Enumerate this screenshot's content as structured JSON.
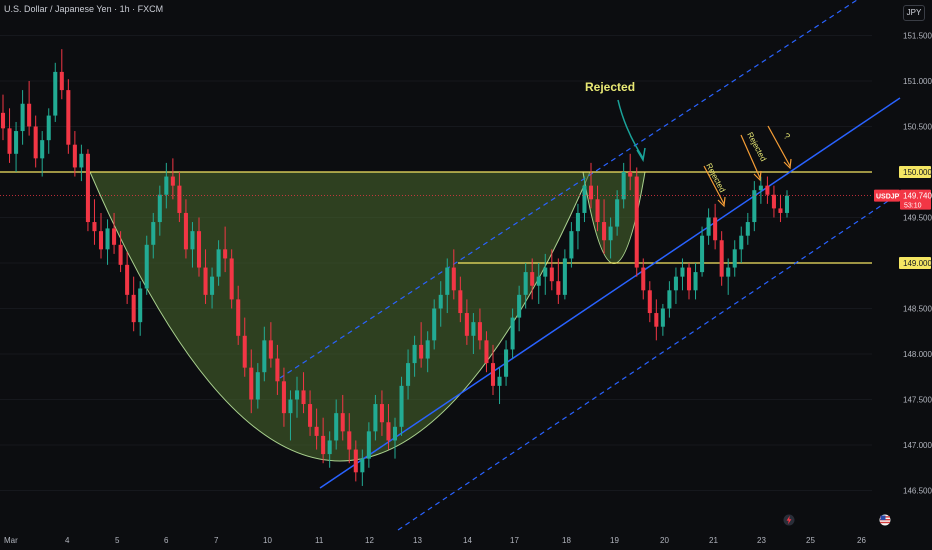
{
  "header": {
    "title": "U.S. Dollar / Japanese Yen · 1h · FXCM",
    "currency": "JPY"
  },
  "colors": {
    "background": "#0c0d10",
    "bull": "#22ab94",
    "bear": "#f23645",
    "horizontal_line": "#f5e663",
    "channel": "#2962ff",
    "cup_fill": "#4b6b2e",
    "cup_stroke": "#a9d08e",
    "annotation_yellow": "#e8e874",
    "annotation_orange": "#f59d36",
    "arrow_teal": "#1aa39a",
    "price_badge": "#f23645"
  },
  "chart_data": {
    "type": "candlestick",
    "title": "U.S. Dollar / Japanese Yen · 1h · FXCM",
    "y_ticks": [
      146.5,
      147.0,
      147.5,
      148.0,
      148.5,
      149.0,
      149.5,
      150.0,
      150.5,
      151.0,
      151.5
    ],
    "y_tick_labels": [
      "146.500",
      "147.000",
      "147.500",
      "148.000",
      "148.500",
      "149.000",
      "149.500",
      "150.000",
      "150.500",
      "151.000",
      "151.500"
    ],
    "ylim": [
      146.25,
      151.8
    ],
    "x_labels": [
      "Mar",
      "4",
      "5",
      "6",
      "7",
      "10",
      "11",
      "12",
      "13",
      "14",
      "17",
      "18",
      "19",
      "20",
      "21",
      "23",
      "25",
      "26"
    ],
    "levels": [
      {
        "label": "150.000",
        "value": 150.0
      },
      {
        "label": "149.000",
        "value": 149.0
      }
    ],
    "current_price": {
      "symbol": "USDJPY",
      "value": "149.740",
      "countdown": "53:10"
    },
    "annotations": {
      "rejected_main": "Rejected",
      "rejected_small_1": "Rejected",
      "rejected_small_2": "Rejected",
      "question": "?"
    },
    "candles": [
      [
        150.65,
        150.85,
        150.35,
        150.48
      ],
      [
        150.48,
        150.7,
        150.1,
        150.2
      ],
      [
        150.2,
        150.55,
        150.0,
        150.45
      ],
      [
        150.45,
        150.9,
        150.3,
        150.75
      ],
      [
        150.75,
        151.0,
        150.4,
        150.5
      ],
      [
        150.5,
        150.62,
        150.05,
        150.15
      ],
      [
        150.15,
        150.45,
        149.95,
        150.35
      ],
      [
        150.35,
        150.7,
        150.2,
        150.62
      ],
      [
        150.62,
        151.2,
        150.55,
        151.1
      ],
      [
        151.1,
        151.35,
        150.8,
        150.9
      ],
      [
        150.9,
        151.02,
        150.2,
        150.3
      ],
      [
        150.3,
        150.45,
        149.95,
        150.05
      ],
      [
        150.05,
        150.3,
        149.9,
        150.2
      ],
      [
        150.2,
        150.25,
        149.35,
        149.45
      ],
      [
        149.45,
        149.7,
        149.2,
        149.35
      ],
      [
        149.35,
        149.55,
        149.05,
        149.15
      ],
      [
        149.15,
        149.48,
        148.98,
        149.38
      ],
      [
        149.38,
        149.55,
        149.1,
        149.2
      ],
      [
        149.2,
        149.35,
        148.9,
        148.98
      ],
      [
        148.98,
        149.12,
        148.55,
        148.65
      ],
      [
        148.65,
        148.85,
        148.25,
        148.35
      ],
      [
        148.35,
        148.8,
        148.2,
        148.72
      ],
      [
        148.72,
        149.3,
        148.65,
        149.2
      ],
      [
        149.2,
        149.55,
        149.05,
        149.45
      ],
      [
        149.45,
        149.85,
        149.3,
        149.75
      ],
      [
        149.75,
        150.1,
        149.6,
        149.95
      ],
      [
        149.95,
        150.15,
        149.7,
        149.85
      ],
      [
        149.85,
        150.0,
        149.45,
        149.55
      ],
      [
        149.55,
        149.7,
        149.05,
        149.15
      ],
      [
        149.15,
        149.45,
        148.95,
        149.35
      ],
      [
        149.35,
        149.5,
        148.85,
        148.95
      ],
      [
        148.95,
        149.15,
        148.55,
        148.65
      ],
      [
        148.65,
        148.95,
        148.5,
        148.85
      ],
      [
        148.85,
        149.25,
        148.75,
        149.15
      ],
      [
        149.15,
        149.4,
        148.9,
        149.05
      ],
      [
        149.05,
        149.15,
        148.5,
        148.6
      ],
      [
        148.6,
        148.75,
        148.1,
        148.2
      ],
      [
        148.2,
        148.4,
        147.75,
        147.85
      ],
      [
        147.85,
        148.05,
        147.35,
        147.5
      ],
      [
        147.5,
        147.9,
        147.4,
        147.8
      ],
      [
        147.8,
        148.3,
        147.7,
        148.15
      ],
      [
        148.15,
        148.35,
        147.85,
        147.95
      ],
      [
        147.95,
        148.1,
        147.55,
        147.7
      ],
      [
        147.7,
        147.85,
        147.2,
        147.35
      ],
      [
        147.35,
        147.6,
        147.05,
        147.5
      ],
      [
        147.5,
        147.75,
        147.3,
        147.6
      ],
      [
        147.6,
        147.8,
        147.35,
        147.45
      ],
      [
        147.45,
        147.6,
        147.1,
        147.2
      ],
      [
        147.2,
        147.4,
        146.95,
        147.1
      ],
      [
        147.1,
        147.3,
        146.8,
        146.9
      ],
      [
        146.9,
        147.15,
        146.75,
        147.05
      ],
      [
        147.05,
        147.5,
        146.95,
        147.35
      ],
      [
        147.35,
        147.55,
        147.05,
        147.15
      ],
      [
        147.15,
        147.35,
        146.8,
        146.95
      ],
      [
        146.95,
        147.05,
        146.6,
        146.7
      ],
      [
        146.7,
        146.95,
        146.55,
        146.85
      ],
      [
        146.85,
        147.25,
        146.75,
        147.15
      ],
      [
        147.15,
        147.55,
        147.05,
        147.45
      ],
      [
        147.45,
        147.6,
        147.1,
        147.25
      ],
      [
        147.25,
        147.45,
        146.95,
        147.05
      ],
      [
        147.05,
        147.3,
        146.85,
        147.2
      ],
      [
        147.2,
        147.75,
        147.1,
        147.65
      ],
      [
        147.65,
        148.05,
        147.5,
        147.9
      ],
      [
        147.9,
        148.2,
        147.75,
        148.1
      ],
      [
        148.1,
        148.35,
        147.85,
        147.95
      ],
      [
        147.95,
        148.25,
        147.8,
        148.15
      ],
      [
        148.15,
        148.6,
        148.05,
        148.5
      ],
      [
        148.5,
        148.8,
        148.3,
        148.65
      ],
      [
        148.65,
        149.05,
        148.45,
        148.95
      ],
      [
        148.95,
        149.15,
        148.6,
        148.7
      ],
      [
        148.7,
        148.85,
        148.35,
        148.45
      ],
      [
        148.45,
        148.6,
        148.1,
        148.2
      ],
      [
        148.2,
        148.45,
        148.0,
        148.35
      ],
      [
        148.35,
        148.5,
        148.05,
        148.15
      ],
      [
        148.15,
        148.25,
        147.8,
        147.9
      ],
      [
        147.9,
        148.1,
        147.55,
        147.65
      ],
      [
        147.65,
        147.85,
        147.45,
        147.75
      ],
      [
        147.75,
        148.15,
        147.65,
        148.05
      ],
      [
        148.05,
        148.5,
        147.95,
        148.4
      ],
      [
        148.4,
        148.75,
        148.25,
        148.65
      ],
      [
        148.65,
        149.0,
        148.5,
        148.9
      ],
      [
        148.9,
        149.05,
        148.6,
        148.75
      ],
      [
        148.75,
        149.0,
        148.55,
        148.85
      ],
      [
        148.85,
        149.1,
        148.65,
        148.95
      ],
      [
        148.95,
        149.15,
        148.7,
        148.8
      ],
      [
        148.8,
        149.05,
        148.55,
        148.65
      ],
      [
        148.65,
        149.15,
        148.6,
        149.05
      ],
      [
        149.05,
        149.45,
        148.95,
        149.35
      ],
      [
        149.35,
        149.65,
        149.15,
        149.55
      ],
      [
        149.55,
        149.95,
        149.45,
        149.85
      ],
      [
        149.85,
        150.1,
        149.6,
        149.7
      ],
      [
        149.7,
        149.85,
        149.35,
        149.45
      ],
      [
        149.45,
        149.7,
        149.1,
        149.25
      ],
      [
        149.25,
        149.5,
        149.05,
        149.4
      ],
      [
        149.4,
        149.8,
        149.3,
        149.7
      ],
      [
        149.7,
        150.1,
        149.6,
        150.0
      ],
      [
        150.0,
        150.2,
        149.8,
        149.95
      ],
      [
        149.95,
        150.05,
        148.85,
        148.95
      ],
      [
        148.95,
        149.05,
        148.6,
        148.7
      ],
      [
        148.7,
        148.8,
        148.35,
        148.45
      ],
      [
        148.45,
        148.6,
        148.15,
        148.3
      ],
      [
        148.3,
        148.55,
        148.2,
        148.5
      ],
      [
        148.5,
        148.8,
        148.4,
        148.7
      ],
      [
        148.7,
        148.95,
        148.55,
        148.85
      ],
      [
        148.85,
        149.05,
        148.7,
        148.95
      ],
      [
        148.95,
        149.0,
        148.6,
        148.7
      ],
      [
        148.7,
        149.0,
        148.6,
        148.9
      ],
      [
        148.9,
        149.4,
        148.85,
        149.3
      ],
      [
        149.3,
        149.6,
        149.2,
        149.5
      ],
      [
        149.5,
        149.65,
        149.15,
        149.25
      ],
      [
        149.25,
        149.35,
        148.75,
        148.85
      ],
      [
        148.85,
        149.05,
        148.65,
        148.95
      ],
      [
        148.95,
        149.25,
        148.85,
        149.15
      ],
      [
        149.15,
        149.4,
        149.0,
        149.3
      ],
      [
        149.3,
        149.55,
        149.2,
        149.45
      ],
      [
        149.45,
        149.9,
        149.35,
        149.8
      ],
      [
        149.8,
        149.95,
        149.65,
        149.85
      ],
      [
        149.85,
        149.95,
        149.65,
        149.75
      ],
      [
        149.75,
        149.85,
        149.5,
        149.6
      ],
      [
        149.6,
        149.75,
        149.45,
        149.55
      ],
      [
        149.55,
        149.8,
        149.5,
        149.74
      ]
    ]
  }
}
